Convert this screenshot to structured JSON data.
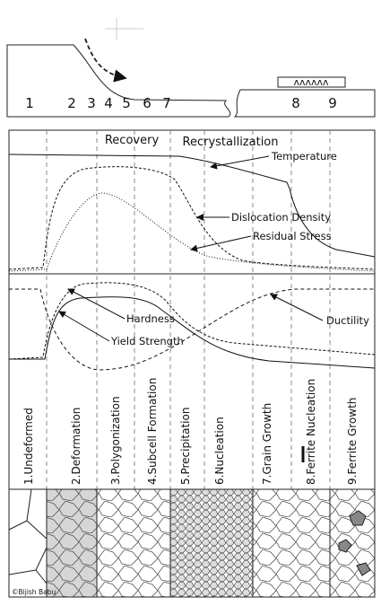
{
  "strip_numbers": [
    "1",
    "2",
    "3",
    "4",
    "5",
    "6",
    "7",
    "8",
    "9"
  ],
  "phases": {
    "recovery": "Recovery",
    "recrystallization": "Recrystallization"
  },
  "curves": {
    "temperature": "Temperature",
    "dislocation_density": "Dislocation Density",
    "residual_stress": "Residual Stress",
    "hardness": "Hardness",
    "yield_strength": "Yield Strength",
    "ductility": "Ductility"
  },
  "stages": [
    "1.Undeformed",
    "2.Deformation",
    "3.Polygonization",
    "4.Subcell Formation",
    "5.Precipitation",
    "6.Nucleation",
    "7.Grain Growth",
    "8.Ferrite Nucleation",
    "9.Ferrite Growth"
  ],
  "credit": "©Bijish Babu"
}
